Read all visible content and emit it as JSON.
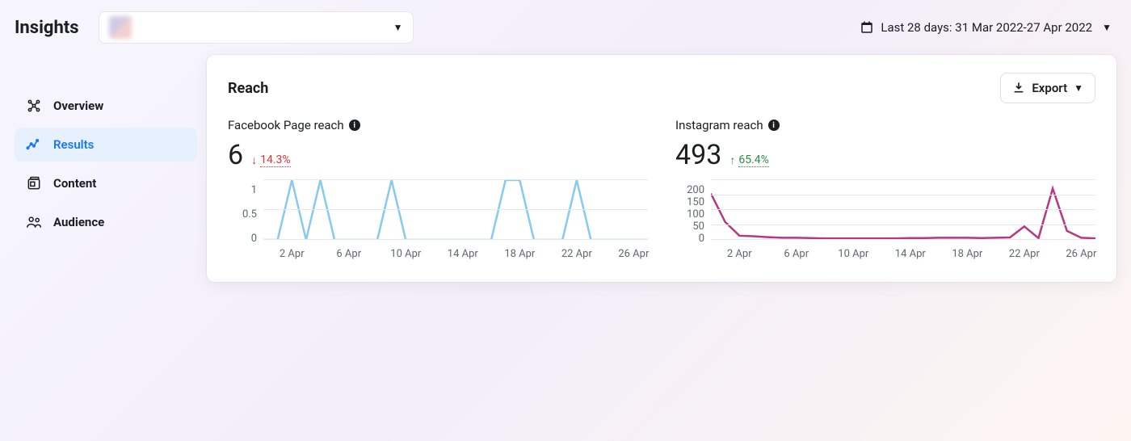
{
  "title": "Insights",
  "date_range_label": "Last 28 days: 31 Mar 2022-27 Apr 2022",
  "sidebar": {
    "items": [
      {
        "label": "Overview"
      },
      {
        "label": "Results"
      },
      {
        "label": "Content"
      },
      {
        "label": "Audience"
      }
    ],
    "active_index": 1
  },
  "card": {
    "title": "Reach",
    "export_label": "Export"
  },
  "facebook_chart": {
    "type": "line",
    "label": "Facebook Page reach",
    "value": "6",
    "delta_direction": "down",
    "delta_value": "14.3%",
    "line_color": "#88c9ee",
    "line_width": 2.5,
    "grid_color": "#e8e8e8",
    "background_color": "#ffffff",
    "ylim": [
      0,
      1
    ],
    "yticks": [
      0,
      0.5,
      1
    ],
    "ytick_labels": [
      "0",
      "0.5",
      "1"
    ],
    "xtick_labels": [
      "2 Apr",
      "6 Apr",
      "10 Apr",
      "14 Apr",
      "18 Apr",
      "22 Apr",
      "26 Apr"
    ],
    "x_values": [
      0,
      1,
      2,
      3,
      4,
      5,
      6,
      7,
      8,
      9,
      10,
      11,
      12,
      13,
      14,
      15,
      16,
      17,
      18,
      19,
      20,
      21,
      22,
      23,
      24,
      25,
      26,
      27
    ],
    "y_values": [
      0,
      0,
      1,
      0,
      1,
      0,
      0,
      0,
      0,
      1,
      0,
      0,
      0,
      0,
      0,
      0,
      0,
      1,
      1,
      0,
      0,
      0,
      1,
      0,
      0,
      0,
      0,
      0
    ]
  },
  "instagram_chart": {
    "type": "line",
    "label": "Instagram reach",
    "value": "493",
    "delta_direction": "up",
    "delta_value": "65.4%",
    "line_color": "#b73783",
    "line_width": 2.5,
    "grid_color": "#e8e8e8",
    "background_color": "#ffffff",
    "ylim": [
      0,
      200
    ],
    "yticks": [
      0,
      50,
      100,
      150,
      200
    ],
    "ytick_labels": [
      "0",
      "50",
      "100",
      "150",
      "200"
    ],
    "xtick_labels": [
      "2 Apr",
      "6 Apr",
      "10 Apr",
      "14 Apr",
      "18 Apr",
      "22 Apr",
      "26 Apr"
    ],
    "x_values": [
      0,
      1,
      2,
      3,
      4,
      5,
      6,
      7,
      8,
      9,
      10,
      11,
      12,
      13,
      14,
      15,
      16,
      17,
      18,
      19,
      20,
      21,
      22,
      23,
      24,
      25,
      26,
      27
    ],
    "y_values": [
      155,
      60,
      14,
      12,
      9,
      7,
      7,
      6,
      5,
      5,
      5,
      5,
      5,
      5,
      6,
      6,
      7,
      7,
      7,
      6,
      7,
      8,
      45,
      6,
      172,
      30,
      7,
      5
    ]
  }
}
